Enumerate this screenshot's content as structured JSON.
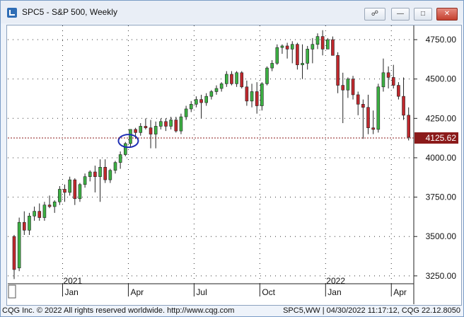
{
  "window": {
    "title": "SPC5 - S&P 500, Weekly",
    "buttons": {
      "link_icon": "link-icon",
      "minimize_icon": "minimize-icon",
      "maximize_icon": "maximize-icon",
      "close_icon": "close-icon"
    }
  },
  "footer": {
    "copyright": "CQG Inc. © 2022 All rights reserved worldwide. http://www.cqg.com",
    "status": "SPC5,WW | 04/30/2022 11:17:12, CQG 22.12.8050"
  },
  "colors": {
    "up": "#3cb043",
    "down": "#c0282d",
    "price_line": "#8b1a1a",
    "last_label_bg": "#8b1a1a",
    "circle": "#1f2fb4"
  },
  "chart_data": {
    "type": "candlestick",
    "title": "SPC5 - S&P 500, Weekly",
    "y_ticks": [
      "4750.00",
      "4500.00",
      "4250.00",
      "4000.00",
      "3750.00",
      "3500.00",
      "3250.00"
    ],
    "ylim": [
      3200,
      4840
    ],
    "x_ticks": [
      {
        "label": "Jan",
        "index": 10
      },
      {
        "label": "Apr",
        "index": 23
      },
      {
        "label": "Jul",
        "index": 36
      },
      {
        "label": "Oct",
        "index": 49
      },
      {
        "label": "Jan",
        "index": 62
      },
      {
        "label": "Apr",
        "index": 75
      }
    ],
    "year_labels": [
      {
        "label": "2021",
        "index": 10
      },
      {
        "label": "2022",
        "index": 62
      }
    ],
    "last_price": 4125.62,
    "last_price_label": "4125.62",
    "highlight_index": 23,
    "grid": true,
    "candles": [
      [
        3500,
        3510,
        3230,
        3290
      ],
      [
        3300,
        3620,
        3280,
        3590
      ],
      [
        3590,
        3660,
        3510,
        3540
      ],
      [
        3540,
        3650,
        3510,
        3630
      ],
      [
        3630,
        3690,
        3600,
        3660
      ],
      [
        3660,
        3710,
        3600,
        3620
      ],
      [
        3620,
        3720,
        3600,
        3700
      ],
      [
        3700,
        3760,
        3680,
        3690
      ],
      [
        3690,
        3730,
        3650,
        3720
      ],
      [
        3720,
        3820,
        3700,
        3800
      ],
      [
        3800,
        3830,
        3720,
        3780
      ],
      [
        3780,
        3880,
        3760,
        3860
      ],
      [
        3860,
        3870,
        3700,
        3740
      ],
      [
        3740,
        3840,
        3720,
        3830
      ],
      [
        3830,
        3900,
        3810,
        3880
      ],
      [
        3880,
        3920,
        3850,
        3910
      ],
      [
        3910,
        3950,
        3780,
        3880
      ],
      [
        3880,
        3990,
        3720,
        3940
      ],
      [
        3940,
        3990,
        3840,
        3860
      ],
      [
        3860,
        3930,
        3840,
        3920
      ],
      [
        3920,
        3980,
        3900,
        3970
      ],
      [
        3970,
        4040,
        3930,
        4020
      ],
      [
        4020,
        4100,
        4010,
        4090
      ],
      [
        4090,
        4180,
        4070,
        4180
      ],
      [
        4180,
        4190,
        4120,
        4160
      ],
      [
        4160,
        4220,
        4140,
        4200
      ],
      [
        4200,
        4250,
        4180,
        4190
      ],
      [
        4190,
        4240,
        4060,
        4150
      ],
      [
        4150,
        4230,
        4060,
        4200
      ],
      [
        4200,
        4250,
        4180,
        4230
      ],
      [
        4230,
        4250,
        4170,
        4200
      ],
      [
        4200,
        4260,
        4180,
        4240
      ],
      [
        4240,
        4260,
        4160,
        4170
      ],
      [
        4170,
        4280,
        4150,
        4260
      ],
      [
        4260,
        4330,
        4240,
        4310
      ],
      [
        4310,
        4360,
        4290,
        4340
      ],
      [
        4340,
        4390,
        4320,
        4370
      ],
      [
        4370,
        4400,
        4250,
        4350
      ],
      [
        4350,
        4410,
        4330,
        4390
      ],
      [
        4390,
        4430,
        4370,
        4420
      ],
      [
        4420,
        4460,
        4400,
        4440
      ],
      [
        4440,
        4480,
        4420,
        4470
      ],
      [
        4470,
        4550,
        4450,
        4530
      ],
      [
        4530,
        4550,
        4460,
        4470
      ],
      [
        4470,
        4550,
        4450,
        4540
      ],
      [
        4540,
        4550,
        4440,
        4450
      ],
      [
        4450,
        4490,
        4330,
        4360
      ],
      [
        4360,
        4470,
        4320,
        4420
      ],
      [
        4420,
        4480,
        4280,
        4330
      ],
      [
        4330,
        4480,
        4300,
        4470
      ],
      [
        4470,
        4580,
        4460,
        4570
      ],
      [
        4570,
        4620,
        4550,
        4600
      ],
      [
        4600,
        4720,
        4590,
        4700
      ],
      [
        4700,
        4720,
        4660,
        4710
      ],
      [
        4710,
        4730,
        4630,
        4690
      ],
      [
        4690,
        4740,
        4600,
        4720
      ],
      [
        4720,
        4730,
        4560,
        4590
      ],
      [
        4590,
        4720,
        4500,
        4600
      ],
      [
        4600,
        4710,
        4560,
        4690
      ],
      [
        4690,
        4760,
        4600,
        4720
      ],
      [
        4720,
        4790,
        4690,
        4770
      ],
      [
        4770,
        4810,
        4650,
        4690
      ],
      [
        4690,
        4760,
        4690,
        4750
      ],
      [
        4750,
        4770,
        4650,
        4650
      ],
      [
        4650,
        4670,
        4410,
        4460
      ],
      [
        4460,
        4540,
        4220,
        4430
      ],
      [
        4430,
        4510,
        4380,
        4500
      ],
      [
        4500,
        4520,
        4370,
        4400
      ],
      [
        4400,
        4420,
        4270,
        4340
      ],
      [
        4340,
        4370,
        4120,
        4320
      ],
      [
        4320,
        4400,
        4150,
        4190
      ],
      [
        4190,
        4300,
        4150,
        4180
      ],
      [
        4180,
        4470,
        4160,
        4450
      ],
      [
        4450,
        4630,
        4420,
        4540
      ],
      [
        4540,
        4580,
        4440,
        4510
      ],
      [
        4510,
        4590,
        4440,
        4460
      ],
      [
        4460,
        4480,
        4370,
        4390
      ],
      [
        4390,
        4510,
        4240,
        4270
      ],
      [
        4270,
        4320,
        4110,
        4130
      ]
    ]
  }
}
